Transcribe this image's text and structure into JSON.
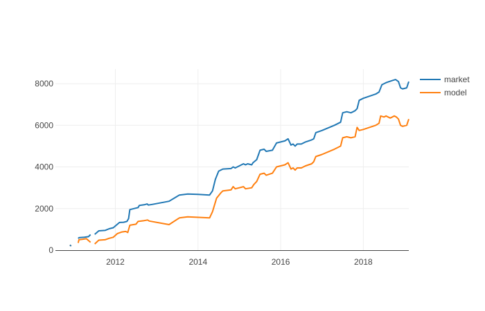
{
  "chart_data": {
    "type": "line",
    "title": "",
    "xlabel": "",
    "ylabel": "",
    "xlim": [
      2010.55,
      2019.1
    ],
    "ylim": [
      0,
      8700
    ],
    "grid": true,
    "legend_placement": "top-right",
    "x_ticks": [
      2012,
      2014,
      2016,
      2018
    ],
    "x_tick_labels": [
      "2012",
      "2014",
      "2016",
      "2018"
    ],
    "y_ticks": [
      0,
      2000,
      4000,
      6000,
      8000
    ],
    "y_tick_labels": [
      "0",
      "2000",
      "4000",
      "6000",
      "8000"
    ],
    "series": [
      {
        "name": "market",
        "color": "#1f77b4",
        "segments": [
          [
            [
              2010.9,
              250
            ],
            [
              2010.93,
              200
            ]
          ],
          [
            [
              2011.1,
              560
            ],
            [
              2011.12,
              600
            ],
            [
              2011.25,
              620
            ],
            [
              2011.35,
              650
            ],
            [
              2011.4,
              750
            ]
          ],
          [
            [
              2011.5,
              760
            ],
            [
              2011.6,
              930
            ],
            [
              2011.75,
              950
            ],
            [
              2011.85,
              1030
            ],
            [
              2011.95,
              1080
            ],
            [
              2012.05,
              1250
            ],
            [
              2012.1,
              1330
            ],
            [
              2012.2,
              1340
            ],
            [
              2012.28,
              1380
            ],
            [
              2012.32,
              1520
            ],
            [
              2012.35,
              1950
            ],
            [
              2012.45,
              2000
            ],
            [
              2012.55,
              2050
            ],
            [
              2012.58,
              2150
            ],
            [
              2012.7,
              2180
            ],
            [
              2012.77,
              2220
            ],
            [
              2012.8,
              2170
            ],
            [
              2012.9,
              2200
            ],
            [
              2013.3,
              2350
            ],
            [
              2013.55,
              2650
            ],
            [
              2013.75,
              2700
            ],
            [
              2014.0,
              2680
            ],
            [
              2014.28,
              2650
            ],
            [
              2014.35,
              2850
            ],
            [
              2014.42,
              3400
            ],
            [
              2014.5,
              3800
            ],
            [
              2014.55,
              3850
            ],
            [
              2014.6,
              3900
            ],
            [
              2014.8,
              3920
            ],
            [
              2014.85,
              4000
            ],
            [
              2014.9,
              3950
            ],
            [
              2014.95,
              4000
            ],
            [
              2015.1,
              4150
            ],
            [
              2015.15,
              4100
            ],
            [
              2015.2,
              4150
            ],
            [
              2015.3,
              4100
            ],
            [
              2015.33,
              4200
            ],
            [
              2015.42,
              4350
            ],
            [
              2015.5,
              4800
            ],
            [
              2015.6,
              4850
            ],
            [
              2015.65,
              4750
            ],
            [
              2015.8,
              4800
            ],
            [
              2015.9,
              5150
            ],
            [
              2016.0,
              5200
            ],
            [
              2016.1,
              5250
            ],
            [
              2016.18,
              5350
            ],
            [
              2016.25,
              5050
            ],
            [
              2016.3,
              5100
            ],
            [
              2016.35,
              5000
            ],
            [
              2016.4,
              5100
            ],
            [
              2016.5,
              5100
            ],
            [
              2016.6,
              5200
            ],
            [
              2016.75,
              5300
            ],
            [
              2016.8,
              5350
            ],
            [
              2016.85,
              5650
            ],
            [
              2017.0,
              5750
            ],
            [
              2017.3,
              6000
            ],
            [
              2017.45,
              6150
            ],
            [
              2017.5,
              6600
            ],
            [
              2017.6,
              6650
            ],
            [
              2017.7,
              6600
            ],
            [
              2017.8,
              6700
            ],
            [
              2017.85,
              6800
            ],
            [
              2017.9,
              7200
            ],
            [
              2018.0,
              7300
            ],
            [
              2018.3,
              7500
            ],
            [
              2018.38,
              7600
            ],
            [
              2018.45,
              7950
            ],
            [
              2018.55,
              8050
            ],
            [
              2018.7,
              8150
            ],
            [
              2018.78,
              8200
            ],
            [
              2018.85,
              8100
            ],
            [
              2018.9,
              7800
            ],
            [
              2018.95,
              7750
            ],
            [
              2019.05,
              7800
            ],
            [
              2019.1,
              8100
            ]
          ]
        ]
      },
      {
        "name": "model",
        "color": "#ff7f0e",
        "segments": [
          [
            [
              2010.9,
              250
            ],
            [
              2010.93,
              200
            ]
          ],
          [
            [
              2011.1,
              350
            ],
            [
              2011.12,
              500
            ],
            [
              2011.2,
              520
            ],
            [
              2011.3,
              550
            ],
            [
              2011.4,
              380
            ]
          ],
          [
            [
              2011.5,
              300
            ],
            [
              2011.6,
              480
            ],
            [
              2011.75,
              500
            ],
            [
              2011.85,
              570
            ],
            [
              2011.95,
              620
            ],
            [
              2012.05,
              800
            ],
            [
              2012.15,
              870
            ],
            [
              2012.25,
              900
            ],
            [
              2012.3,
              850
            ],
            [
              2012.35,
              1200
            ],
            [
              2012.5,
              1250
            ],
            [
              2012.55,
              1380
            ],
            [
              2012.7,
              1420
            ],
            [
              2012.78,
              1450
            ],
            [
              2012.82,
              1400
            ],
            [
              2013.3,
              1230
            ],
            [
              2013.55,
              1550
            ],
            [
              2013.75,
              1600
            ],
            [
              2014.28,
              1550
            ],
            [
              2014.35,
              1850
            ],
            [
              2014.45,
              2500
            ],
            [
              2014.55,
              2750
            ],
            [
              2014.6,
              2850
            ],
            [
              2014.8,
              2900
            ],
            [
              2014.85,
              3050
            ],
            [
              2014.9,
              2950
            ],
            [
              2015.0,
              3000
            ],
            [
              2015.1,
              3050
            ],
            [
              2015.15,
              2950
            ],
            [
              2015.3,
              3000
            ],
            [
              2015.35,
              3150
            ],
            [
              2015.42,
              3300
            ],
            [
              2015.5,
              3650
            ],
            [
              2015.6,
              3700
            ],
            [
              2015.65,
              3600
            ],
            [
              2015.8,
              3700
            ],
            [
              2015.9,
              4000
            ],
            [
              2016.0,
              4050
            ],
            [
              2016.1,
              4100
            ],
            [
              2016.18,
              4200
            ],
            [
              2016.25,
              3900
            ],
            [
              2016.3,
              3950
            ],
            [
              2016.35,
              3850
            ],
            [
              2016.4,
              3950
            ],
            [
              2016.5,
              3950
            ],
            [
              2016.6,
              4050
            ],
            [
              2016.75,
              4150
            ],
            [
              2016.8,
              4250
            ],
            [
              2016.85,
              4500
            ],
            [
              2017.0,
              4600
            ],
            [
              2017.3,
              4850
            ],
            [
              2017.45,
              5000
            ],
            [
              2017.5,
              5400
            ],
            [
              2017.6,
              5450
            ],
            [
              2017.7,
              5400
            ],
            [
              2017.8,
              5450
            ],
            [
              2017.85,
              5900
            ],
            [
              2017.9,
              5750
            ],
            [
              2018.0,
              5800
            ],
            [
              2018.3,
              6000
            ],
            [
              2018.38,
              6100
            ],
            [
              2018.42,
              6450
            ],
            [
              2018.5,
              6400
            ],
            [
              2018.55,
              6450
            ],
            [
              2018.65,
              6350
            ],
            [
              2018.75,
              6450
            ],
            [
              2018.8,
              6400
            ],
            [
              2018.85,
              6300
            ],
            [
              2018.9,
              6000
            ],
            [
              2018.95,
              5950
            ],
            [
              2019.05,
              6000
            ],
            [
              2019.1,
              6300
            ]
          ]
        ]
      }
    ]
  }
}
